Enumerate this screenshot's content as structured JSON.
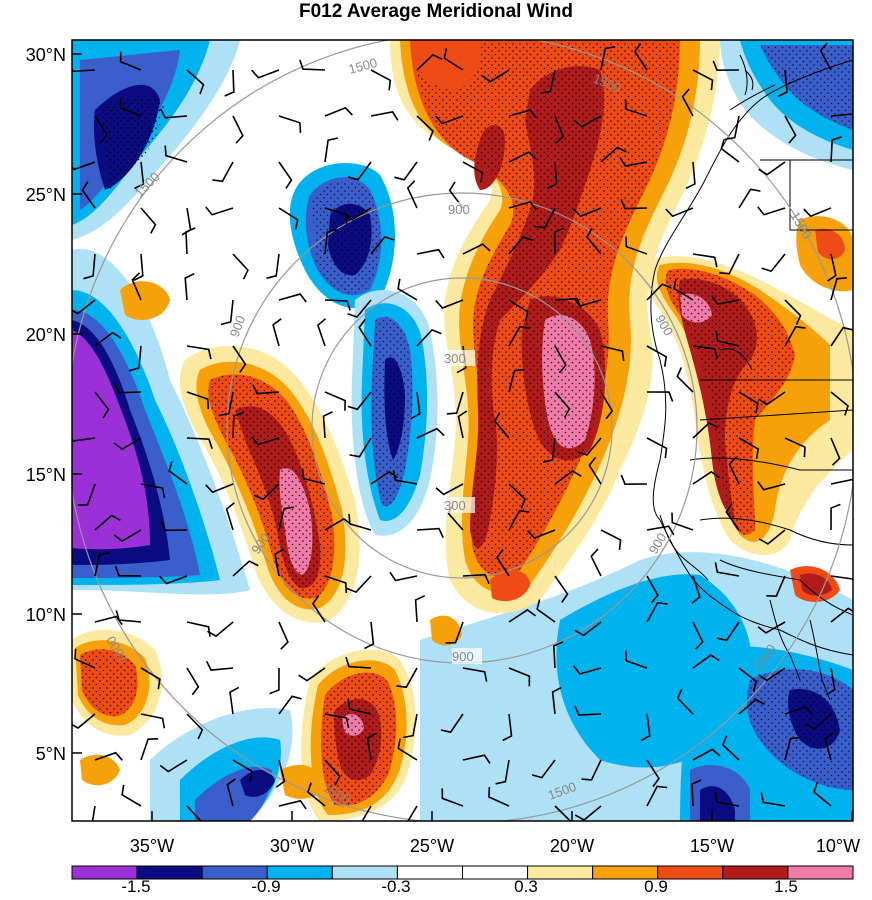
{
  "title": "F012 Average Meridional Wind",
  "lat_ticks": [
    "30°N",
    "25°N",
    "20°N",
    "15°N",
    "10°N",
    "5°N"
  ],
  "lon_ticks": [
    "35°W",
    "30°W",
    "25°W",
    "20°W",
    "15°W",
    "10°W"
  ],
  "colorbar": {
    "labels": [
      "-1.5",
      "-0.9",
      "-0.3",
      "0.3",
      "0.9",
      "1.5"
    ],
    "colors": [
      "#9b30d9",
      "#0b0b82",
      "#3a5fcd",
      "#00b2ee",
      "#aee0f6",
      "#ffffff",
      "#ffffff",
      "#fbe9a0",
      "#f7a10a",
      "#ef4b16",
      "#b01b1b",
      "#f07aa8"
    ]
  },
  "range_rings": [
    "300",
    "900",
    "1500"
  ],
  "colors": {
    "purple": "#9b30d9",
    "navy": "#0b0b82",
    "blue": "#3a5fcd",
    "cyan": "#00b2ee",
    "lightblue": "#aee0f6",
    "yellow": "#fbe9a0",
    "orange": "#f7a10a",
    "redorange": "#ef4b16",
    "darkred": "#b01b1b",
    "pink": "#f07aa8"
  }
}
